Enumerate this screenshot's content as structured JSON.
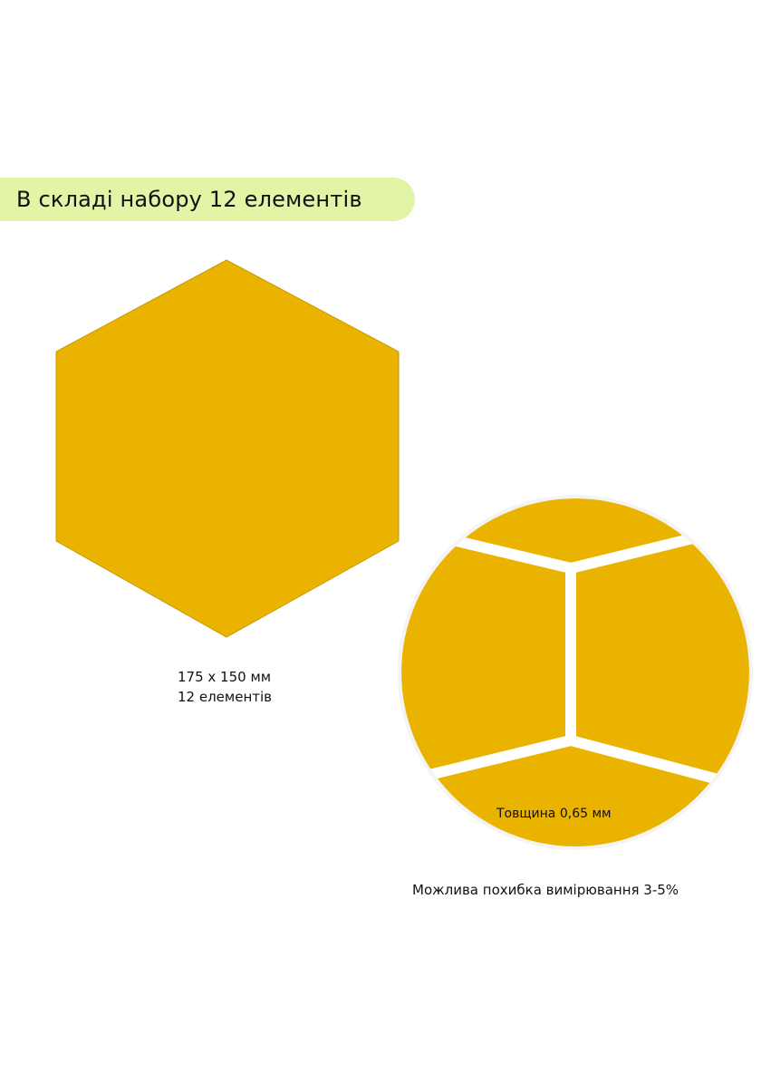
{
  "banner": {
    "text": "В складі набору 12 елементів",
    "color": "#e2f5a6"
  },
  "hexagon": {
    "color": "#e9b300",
    "caption_size": "175 x 150 мм",
    "caption_count": "12 елементів"
  },
  "closeup": {
    "thickness_label": "Товщина 0,65 мм"
  },
  "note": "Можлива похибка вимірювання 3-5%"
}
